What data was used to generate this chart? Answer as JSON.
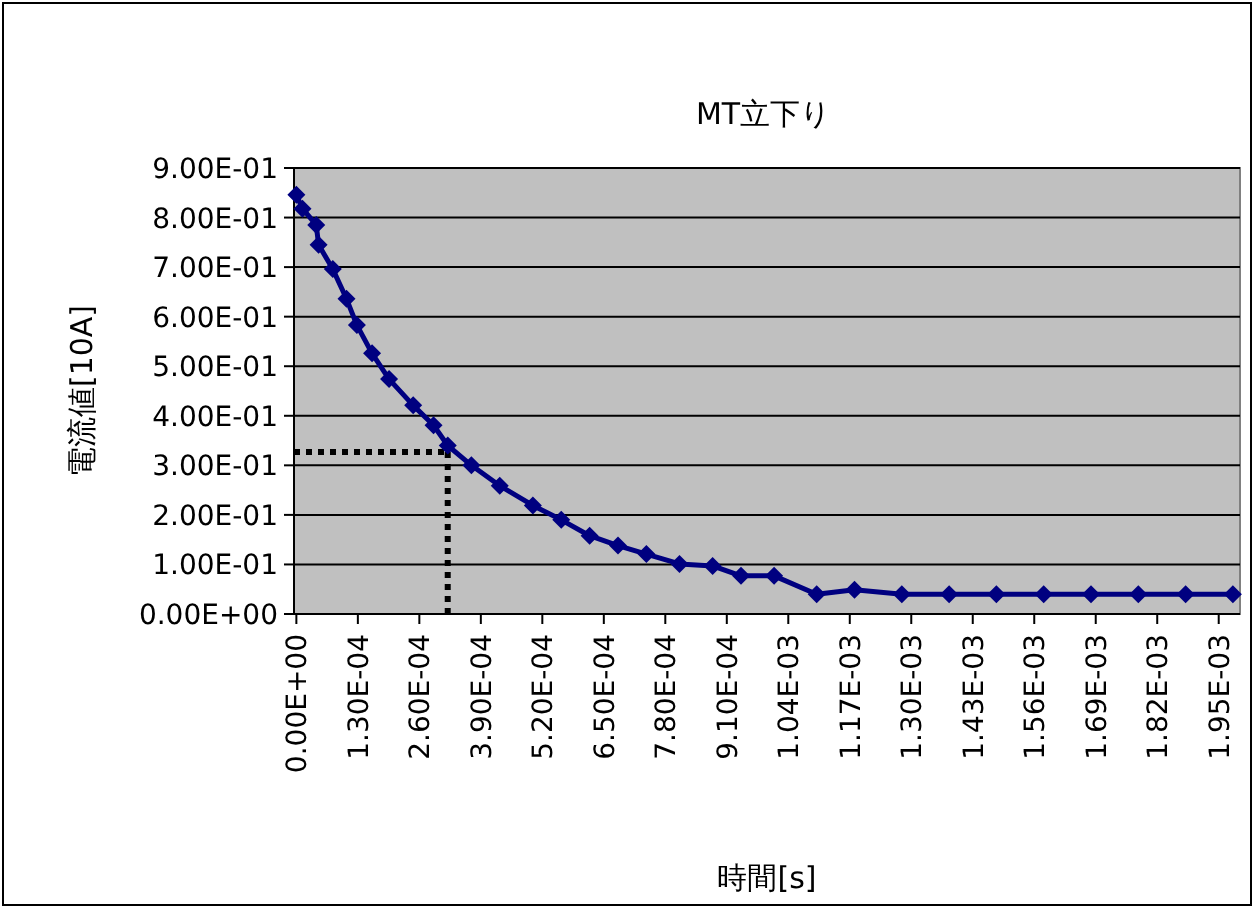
{
  "chart_data": {
    "type": "line",
    "title": "MT立下り",
    "xlabel": "時間[s]",
    "ylabel": "電流値[10A]",
    "x": [
      0,
      1.3e-05,
      4.2e-05,
      4.7e-05,
      7.7e-05,
      0.000106,
      0.000128,
      0.00016,
      0.000196,
      0.000247,
      0.00029,
      0.00032,
      0.00037,
      0.00043,
      0.0005,
      0.00056,
      0.00062,
      0.00068,
      0.00074,
      0.00081,
      0.00088,
      0.00094,
      0.00101,
      0.0011,
      0.00118,
      0.00128,
      0.00138,
      0.00148,
      0.00158,
      0.00168,
      0.00178,
      0.00188,
      0.00198
    ],
    "series": [
      {
        "color": "#000080",
        "values": [
          0.846,
          0.818,
          0.785,
          0.745,
          0.696,
          0.636,
          0.583,
          0.526,
          0.474,
          0.421,
          0.381,
          0.34,
          0.3,
          0.259,
          0.219,
          0.19,
          0.158,
          0.138,
          0.121,
          0.101,
          0.097,
          0.077,
          0.077,
          0.04,
          0.049,
          0.04,
          0.04,
          0.04,
          0.04,
          0.04,
          0.04,
          0.04,
          0.04
        ]
      }
    ],
    "xlim": [
      -5e-06,
      0.001995
    ],
    "ylim": [
      0,
      0.9
    ],
    "xticks": [
      {
        "value": 0,
        "label": "0.00E+00"
      },
      {
        "value": 0.00013,
        "label": "1.30E-04"
      },
      {
        "value": 0.00026,
        "label": "2.60E-04"
      },
      {
        "value": 0.00039,
        "label": "3.90E-04"
      },
      {
        "value": 0.00052,
        "label": "5.20E-04"
      },
      {
        "value": 0.00065,
        "label": "6.50E-04"
      },
      {
        "value": 0.00078,
        "label": "7.80E-04"
      },
      {
        "value": 0.00091,
        "label": "9.10E-04"
      },
      {
        "value": 0.00104,
        "label": "1.04E-03"
      },
      {
        "value": 0.00117,
        "label": "1.17E-03"
      },
      {
        "value": 0.0013,
        "label": "1.30E-03"
      },
      {
        "value": 0.00143,
        "label": "1.43E-03"
      },
      {
        "value": 0.00156,
        "label": "1.56E-03"
      },
      {
        "value": 0.00169,
        "label": "1.69E-03"
      },
      {
        "value": 0.00182,
        "label": "1.82E-03"
      },
      {
        "value": 0.00195,
        "label": "1.95E-03"
      }
    ],
    "yticks": [
      {
        "value": 0,
        "label": "0.00E+00"
      },
      {
        "value": 0.1,
        "label": "1.00E-01"
      },
      {
        "value": 0.2,
        "label": "2.00E-01"
      },
      {
        "value": 0.3,
        "label": "3.00E-01"
      },
      {
        "value": 0.4,
        "label": "4.00E-01"
      },
      {
        "value": 0.5,
        "label": "5.00E-01"
      },
      {
        "value": 0.6,
        "label": "6.00E-01"
      },
      {
        "value": 0.7,
        "label": "7.00E-01"
      },
      {
        "value": 0.8,
        "label": "8.00E-01"
      },
      {
        "value": 0.9,
        "label": "9.00E-01"
      }
    ],
    "ref_lines": [
      {
        "axis": "x",
        "value": 0.00032,
        "color": "#000000",
        "line_style": "dotted"
      },
      {
        "axis": "y",
        "value": 0.327,
        "color": "#000000",
        "line_style": "dotted"
      }
    ],
    "grid": "y",
    "marker": "diamond",
    "line_style": "solid"
  }
}
